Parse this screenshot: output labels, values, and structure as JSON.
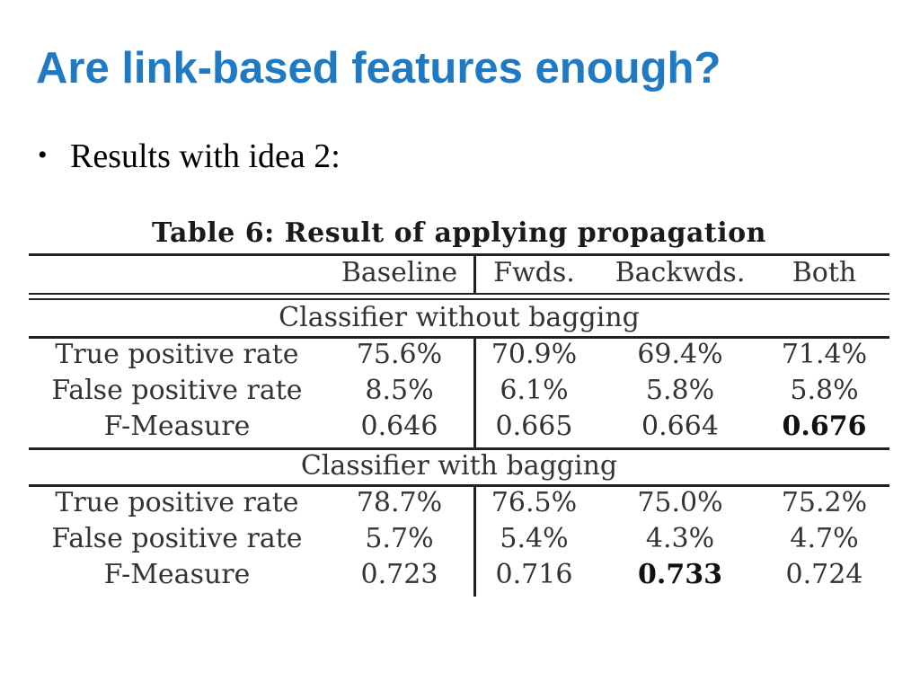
{
  "slide": {
    "title": "Are link-based features enough?",
    "bullet_symbol": "•",
    "bullet_text": "Results with idea 2:"
  },
  "table": {
    "caption": "Table 6: Result of applying propagation",
    "columns": [
      "Baseline",
      "Fwds.",
      "Backwds.",
      "Both"
    ],
    "groups": [
      {
        "label": "Classifier without bagging",
        "rows": [
          {
            "label": "True positive rate",
            "values": [
              "75.6%",
              "70.9%",
              "69.4%",
              "71.4%"
            ]
          },
          {
            "label": "False positive rate",
            "values": [
              "8.5%",
              "6.1%",
              "5.8%",
              "5.8%"
            ]
          },
          {
            "label": "F-Measure",
            "values": [
              "0.646",
              "0.665",
              "0.664",
              "0.676"
            ]
          }
        ]
      },
      {
        "label": "Classifier with bagging",
        "rows": [
          {
            "label": "True positive rate",
            "values": [
              "78.7%",
              "76.5%",
              "75.0%",
              "75.2%"
            ]
          },
          {
            "label": "False positive rate",
            "values": [
              "5.7%",
              "5.4%",
              "4.3%",
              "4.7%"
            ]
          },
          {
            "label": "F-Measure",
            "values": [
              "0.723",
              "0.716",
              "0.733",
              "0.724"
            ]
          }
        ]
      }
    ]
  },
  "colors": {
    "title": "#1f7ac3",
    "text": "#333333",
    "rule": "#222222"
  }
}
